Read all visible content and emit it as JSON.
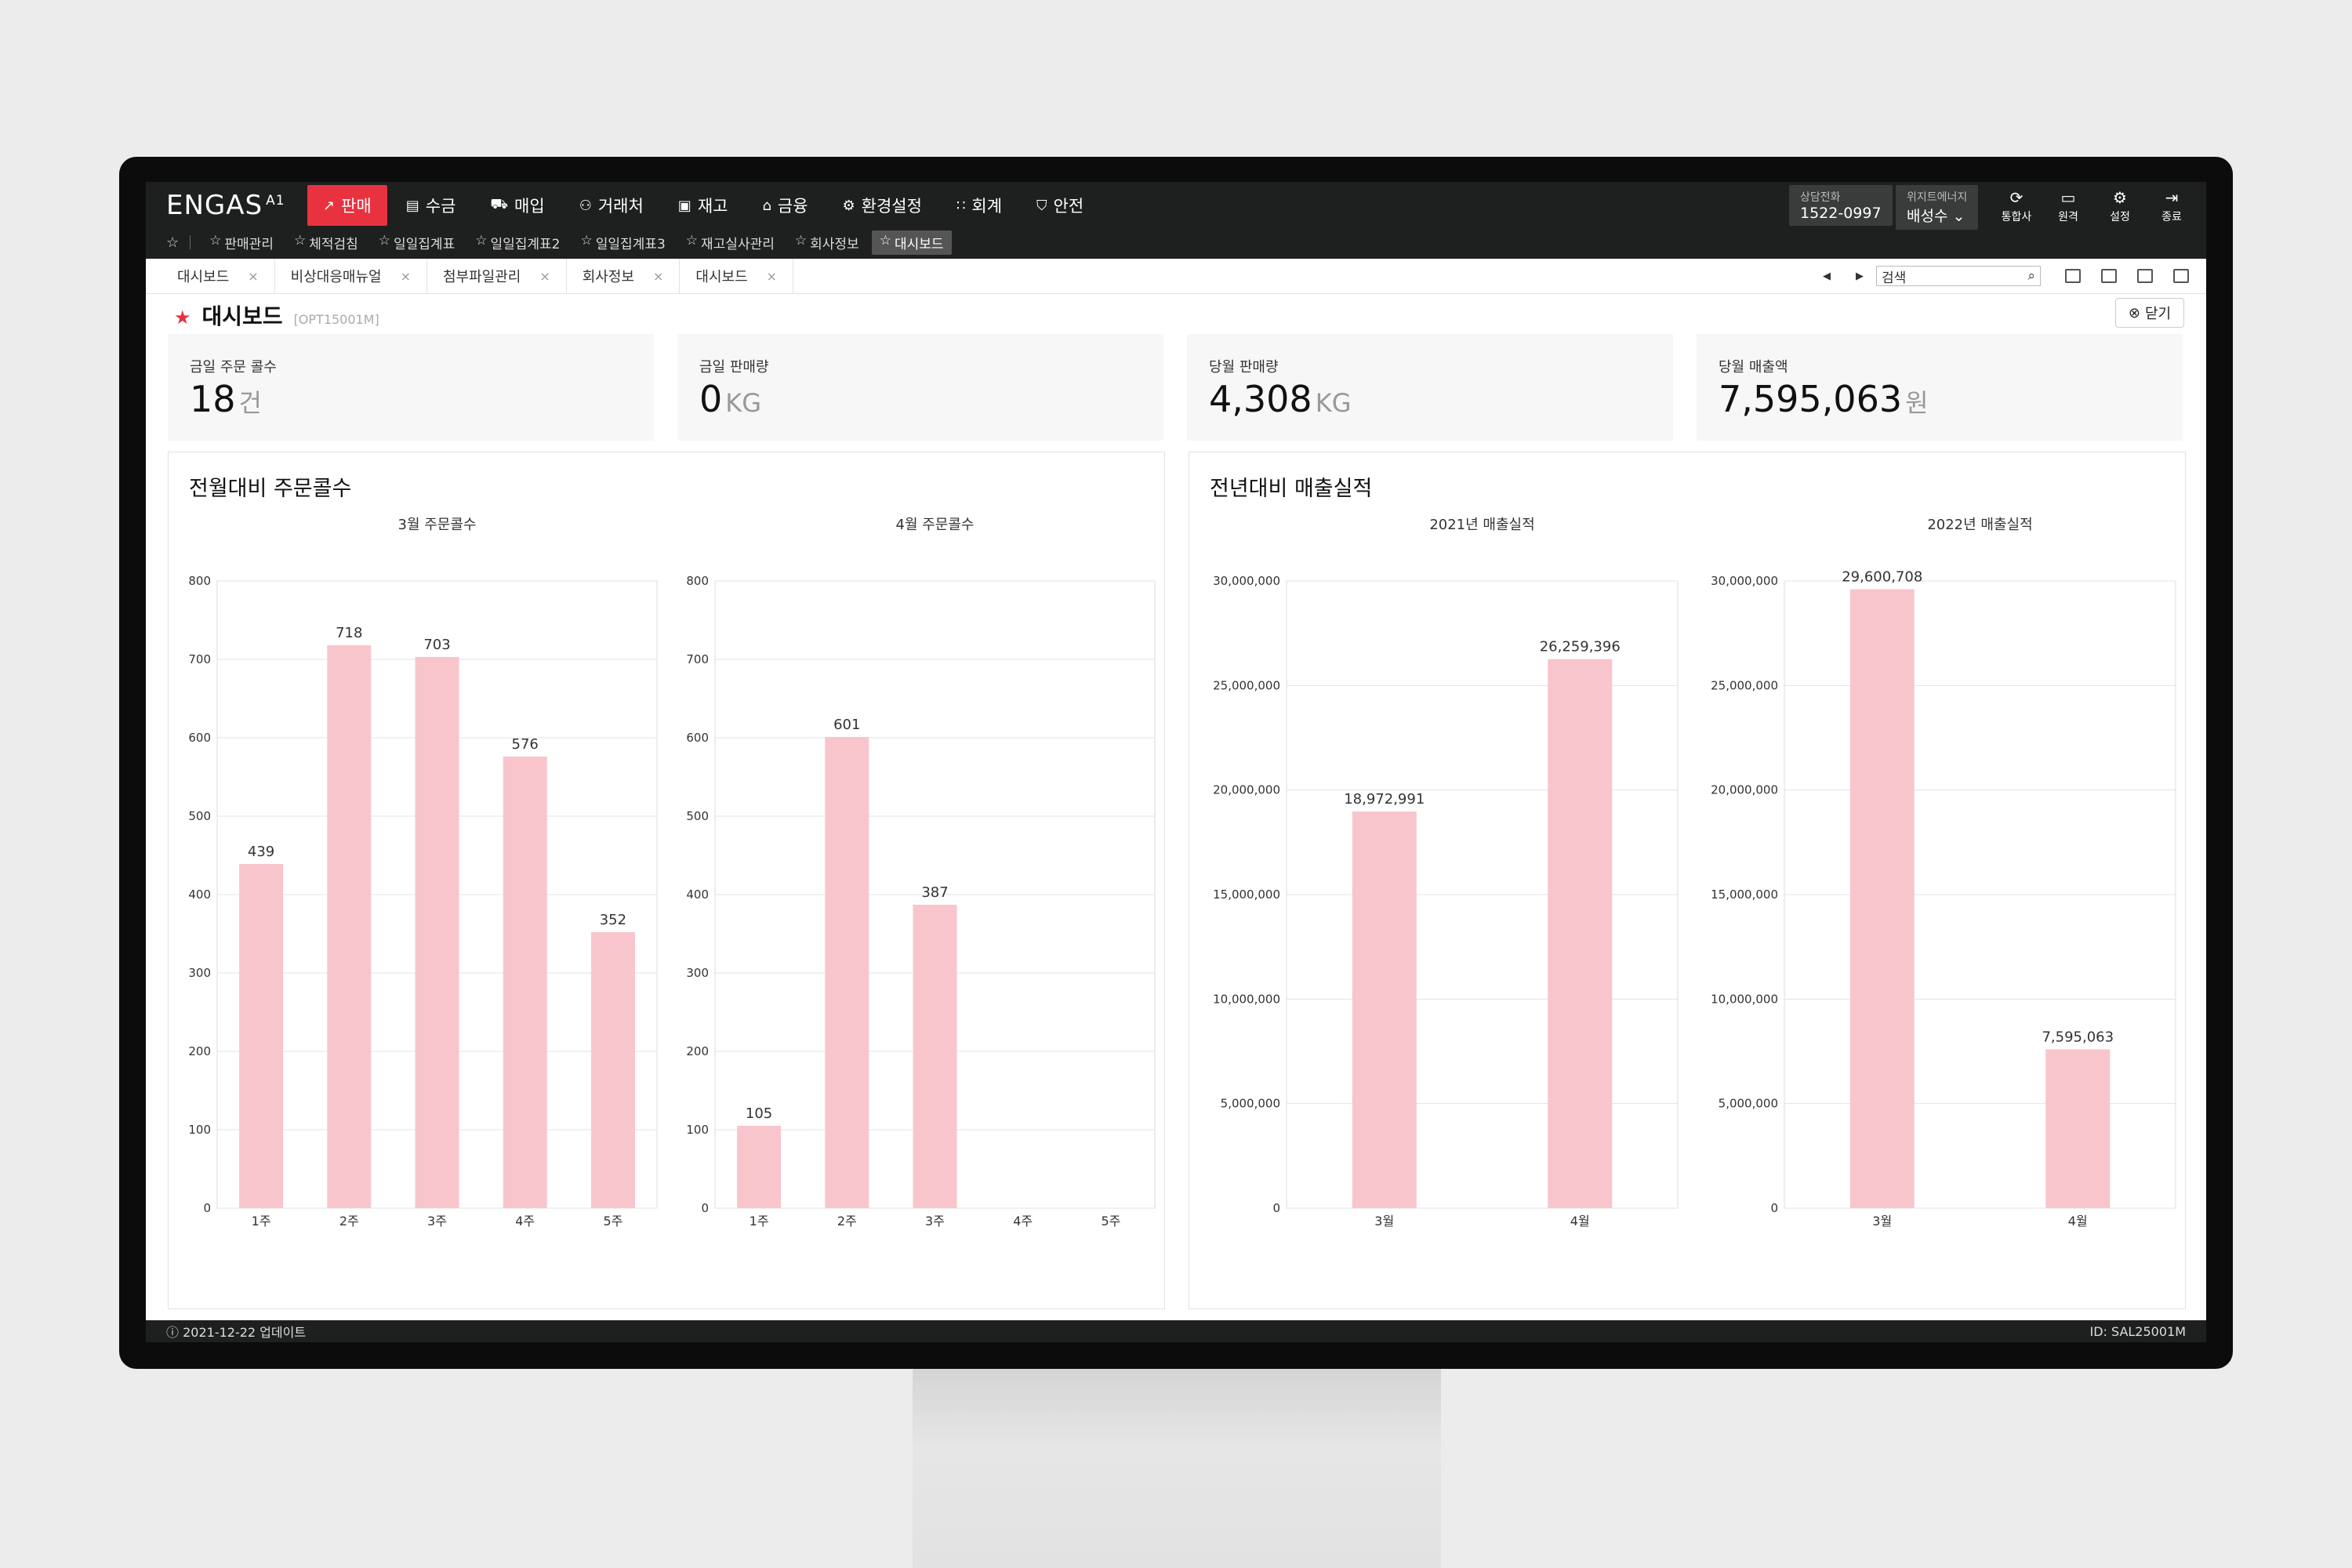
{
  "app": {
    "logo": "ENGAS",
    "logo_sup": "A1"
  },
  "menu": [
    {
      "label": "판매",
      "icon": "chart-icon",
      "active": true
    },
    {
      "label": "수금",
      "icon": "list-icon",
      "active": false
    },
    {
      "label": "매입",
      "icon": "cart-icon",
      "active": false
    },
    {
      "label": "거래처",
      "icon": "people-icon",
      "active": false
    },
    {
      "label": "재고",
      "icon": "box-icon",
      "active": false
    },
    {
      "label": "금융",
      "icon": "bank-icon",
      "active": false
    },
    {
      "label": "환경설정",
      "icon": "gear-icon",
      "active": false
    },
    {
      "label": "회계",
      "icon": "calc-icon",
      "active": false
    },
    {
      "label": "안전",
      "icon": "shield-icon",
      "active": false
    }
  ],
  "subnav": [
    {
      "label": "판매관리",
      "active": false
    },
    {
      "label": "체적검침",
      "active": false
    },
    {
      "label": "일일집계표",
      "active": false
    },
    {
      "label": "일일집계표2",
      "active": false
    },
    {
      "label": "일일집계표3",
      "active": false
    },
    {
      "label": "재고실사관리",
      "active": false
    },
    {
      "label": "회사정보",
      "active": false
    },
    {
      "label": "대시보드",
      "active": true
    }
  ],
  "contact": {
    "label": "상담전화",
    "value": "1522-0997"
  },
  "company": {
    "label": "위지트에너지",
    "value": "배성수"
  },
  "tools": [
    {
      "label": "통합사",
      "icon": "sync-icon"
    },
    {
      "label": "원격",
      "icon": "remote-icon"
    },
    {
      "label": "설정",
      "icon": "settings-icon"
    },
    {
      "label": "종료",
      "icon": "exit-icon"
    }
  ],
  "tabs": [
    "대시보드",
    "비상대응매뉴얼",
    "첨부파일관리",
    "회사정보",
    "대시보드"
  ],
  "search": {
    "placeholder": "검색"
  },
  "page": {
    "title": "대시보드",
    "code": "[OPT15001M]",
    "close_label": "닫기"
  },
  "kpis": [
    {
      "label": "금일 주문 콜수",
      "value": "18",
      "unit": "건"
    },
    {
      "label": "금일 판매량",
      "value": "0",
      "unit": "KG"
    },
    {
      "label": "당월 판매량",
      "value": "4,308",
      "unit": "KG"
    },
    {
      "label": "당월 매출액",
      "value": "7,595,063",
      "unit": "원"
    }
  ],
  "panels": [
    {
      "title": "전월대비 주문콜수"
    },
    {
      "title": "전년대비 매출실적"
    }
  ],
  "chart_data": [
    {
      "type": "bar",
      "title": "3월 주문콜수",
      "categories": [
        "1주",
        "2주",
        "3주",
        "4주",
        "5주"
      ],
      "values": [
        439,
        718,
        703,
        576,
        352
      ],
      "labels": [
        "439",
        "718",
        "703",
        "576",
        "352"
      ],
      "ylim": [
        0,
        800
      ],
      "yticks": [
        0,
        100,
        200,
        300,
        400,
        500,
        600,
        700,
        800
      ],
      "ytick_labels": [
        "0",
        "100",
        "200",
        "300",
        "400",
        "500",
        "600",
        "700",
        "800"
      ],
      "color": "#f9c5cd"
    },
    {
      "type": "bar",
      "title": "4월 주문콜수",
      "categories": [
        "1주",
        "2주",
        "3주",
        "4주",
        "5주"
      ],
      "values": [
        105,
        601,
        387,
        null,
        null
      ],
      "labels": [
        "105",
        "601",
        "387",
        "",
        ""
      ],
      "ylim": [
        0,
        800
      ],
      "yticks": [
        0,
        100,
        200,
        300,
        400,
        500,
        600,
        700,
        800
      ],
      "ytick_labels": [
        "0",
        "100",
        "200",
        "300",
        "400",
        "500",
        "600",
        "700",
        "800"
      ],
      "color": "#f9c5cd"
    },
    {
      "type": "bar",
      "title": "2021년 매출실적",
      "categories": [
        "3월",
        "4월"
      ],
      "values": [
        18972991,
        26259396
      ],
      "labels": [
        "18,972,991",
        "26,259,396"
      ],
      "ylim": [
        0,
        30000000
      ],
      "yticks": [
        0,
        5000000,
        10000000,
        15000000,
        20000000,
        25000000,
        30000000
      ],
      "ytick_labels": [
        "0",
        "5,000,000",
        "10,000,000",
        "15,000,000",
        "20,000,000",
        "25,000,000",
        "30,000,000"
      ],
      "color": "#f9c5cd"
    },
    {
      "type": "bar",
      "title": "2022년 매출실적",
      "categories": [
        "3월",
        "4월"
      ],
      "values": [
        29600708,
        7595063
      ],
      "labels": [
        "29,600,708",
        "7,595,063"
      ],
      "ylim": [
        0,
        30000000
      ],
      "yticks": [
        0,
        5000000,
        10000000,
        15000000,
        20000000,
        25000000,
        30000000
      ],
      "ytick_labels": [
        "0",
        "5,000,000",
        "10,000,000",
        "15,000,000",
        "20,000,000",
        "25,000,000",
        "30,000,000"
      ],
      "color": "#f9c5cd"
    }
  ],
  "footer": {
    "updated": "2021-12-22 업데이트",
    "id": "ID: SAL25001M"
  }
}
